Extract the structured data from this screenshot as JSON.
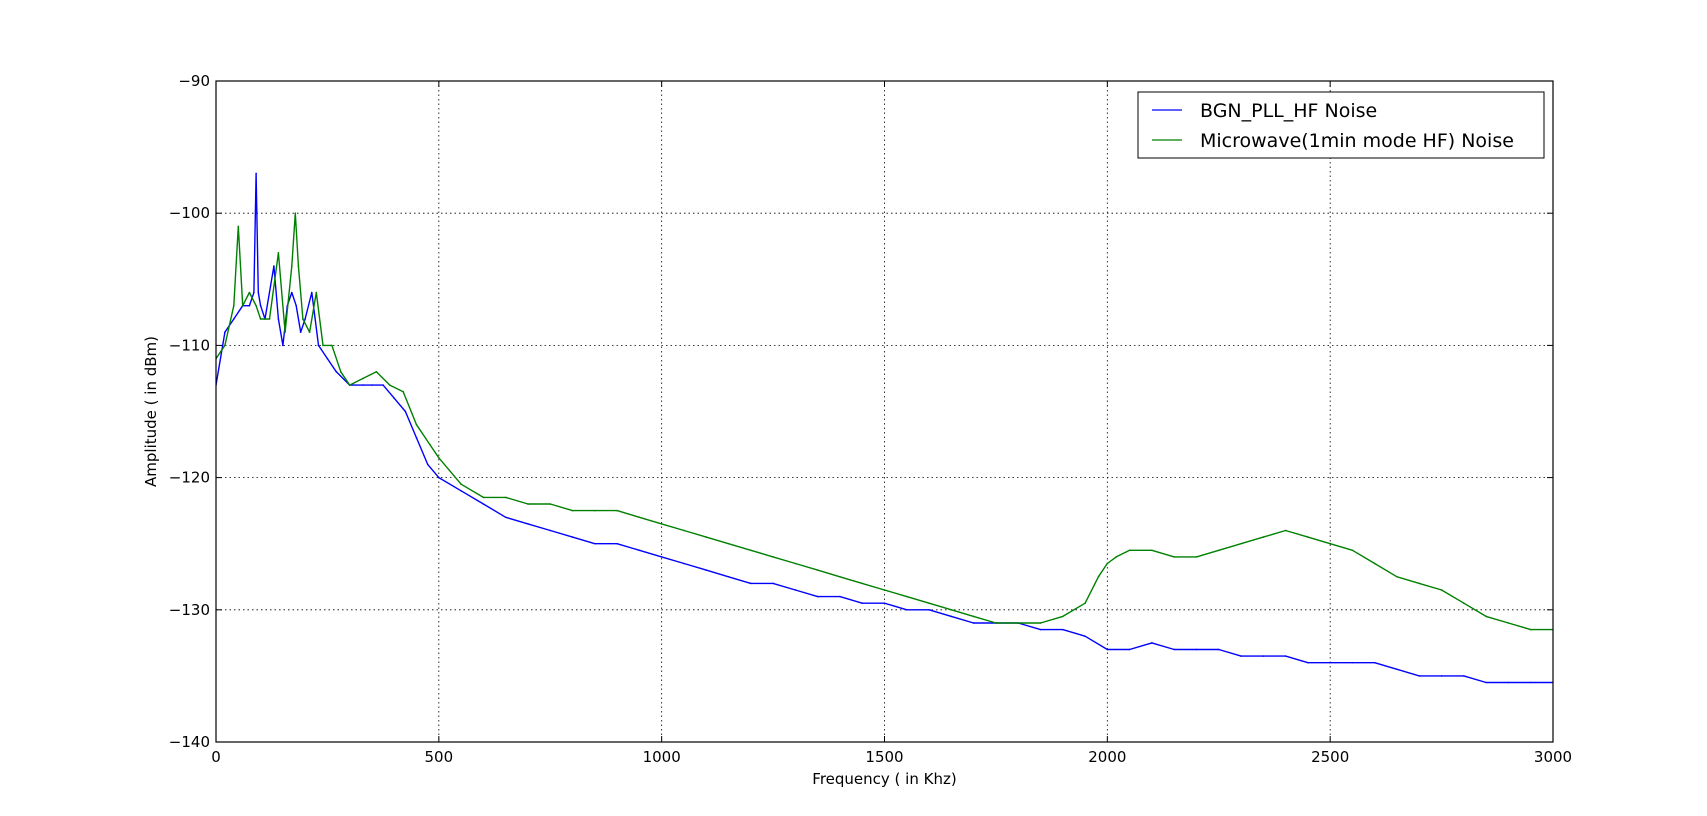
{
  "chart_data": {
    "type": "line",
    "title": "",
    "xlabel": "Frequency ( in Khz)",
    "ylabel": "Amplitude ( in dBm)",
    "xlim": [
      0,
      3000
    ],
    "ylim": [
      -140,
      -90
    ],
    "xticks": [
      0,
      500,
      1000,
      1500,
      2000,
      2500,
      3000
    ],
    "yticks": [
      -140,
      -130,
      -120,
      -110,
      -100,
      -90
    ],
    "xtick_labels": [
      "0",
      "500",
      "1000",
      "1500",
      "2000",
      "2500",
      "3000"
    ],
    "ytick_labels": [
      "−140",
      "−130",
      "−120",
      "−110",
      "−100",
      "−90"
    ],
    "grid": true,
    "legend_position": "top-right",
    "series": [
      {
        "name": "BGN_PLL_HF Noise",
        "color": "#0000ff",
        "x": [
          0,
          20,
          40,
          60,
          75,
          85,
          90,
          95,
          100,
          110,
          130,
          140,
          150,
          160,
          170,
          180,
          190,
          200,
          215,
          230,
          250,
          270,
          300,
          330,
          350,
          375,
          400,
          425,
          450,
          475,
          500,
          550,
          600,
          650,
          700,
          750,
          800,
          850,
          900,
          950,
          1000,
          1050,
          1100,
          1150,
          1200,
          1250,
          1300,
          1350,
          1400,
          1450,
          1500,
          1550,
          1600,
          1650,
          1700,
          1750,
          1800,
          1850,
          1900,
          1950,
          2000,
          2050,
          2100,
          2150,
          2200,
          2250,
          2300,
          2350,
          2400,
          2450,
          2500,
          2550,
          2600,
          2650,
          2700,
          2750,
          2800,
          2850,
          2900,
          2950,
          3000
        ],
        "values": [
          -113,
          -109,
          -108,
          -107,
          -107,
          -106,
          -97,
          -106,
          -107,
          -108,
          -104,
          -108,
          -110,
          -107,
          -106,
          -107,
          -109,
          -108,
          -106,
          -110,
          -111,
          -112,
          -113,
          -113,
          -113,
          -113,
          -114,
          -115,
          -117,
          -119,
          -120,
          -121,
          -122,
          -123,
          -123.5,
          -124,
          -124.5,
          -125,
          -125,
          -125.5,
          -126,
          -126.5,
          -127,
          -127.5,
          -128,
          -128,
          -128.5,
          -129,
          -129,
          -129.5,
          -129.5,
          -130,
          -130,
          -130.5,
          -131,
          -131,
          -131,
          -131.5,
          -131.5,
          -132,
          -133,
          -133,
          -132.5,
          -133,
          -133,
          -133,
          -133.5,
          -133.5,
          -133.5,
          -134,
          -134,
          -134,
          -134,
          -134.5,
          -135,
          -135,
          -135,
          -135.5,
          -135.5,
          -135.5,
          -135.5
        ]
      },
      {
        "name": "Microwave(1min mode HF) Noise",
        "color": "#008000",
        "x": [
          0,
          20,
          40,
          50,
          60,
          75,
          90,
          100,
          120,
          140,
          155,
          170,
          178,
          185,
          195,
          210,
          225,
          240,
          260,
          280,
          300,
          330,
          360,
          390,
          420,
          450,
          480,
          500,
          550,
          600,
          650,
          700,
          750,
          800,
          850,
          900,
          950,
          1000,
          1050,
          1100,
          1150,
          1200,
          1250,
          1300,
          1350,
          1400,
          1450,
          1500,
          1550,
          1600,
          1650,
          1700,
          1750,
          1800,
          1850,
          1900,
          1950,
          1980,
          2000,
          2020,
          2050,
          2100,
          2150,
          2200,
          2250,
          2300,
          2350,
          2400,
          2450,
          2500,
          2550,
          2600,
          2650,
          2700,
          2750,
          2800,
          2850,
          2900,
          2950,
          3000
        ],
        "values": [
          -111,
          -110,
          -107,
          -101,
          -107,
          -106,
          -107,
          -108,
          -108,
          -103,
          -109,
          -104,
          -100,
          -104,
          -108,
          -109,
          -106,
          -110,
          -110,
          -112,
          -113,
          -112.5,
          -112,
          -113,
          -113.5,
          -116,
          -117.5,
          -118.5,
          -120.5,
          -121.5,
          -121.5,
          -122,
          -122,
          -122.5,
          -122.5,
          -122.5,
          -123,
          -123.5,
          -124,
          -124.5,
          -125,
          -125.5,
          -126,
          -126.5,
          -127,
          -127.5,
          -128,
          -128.5,
          -129,
          -129.5,
          -130,
          -130.5,
          -131,
          -131,
          -131,
          -130.5,
          -129.5,
          -127.5,
          -126.5,
          -126,
          -125.5,
          -125.5,
          -126,
          -126,
          -125.5,
          -125,
          -124.5,
          -124,
          -124.5,
          -125,
          -125.5,
          -126.5,
          -127.5,
          -128,
          -128.5,
          -129.5,
          -130.5,
          -131,
          -131.5,
          -131.5
        ]
      }
    ]
  }
}
